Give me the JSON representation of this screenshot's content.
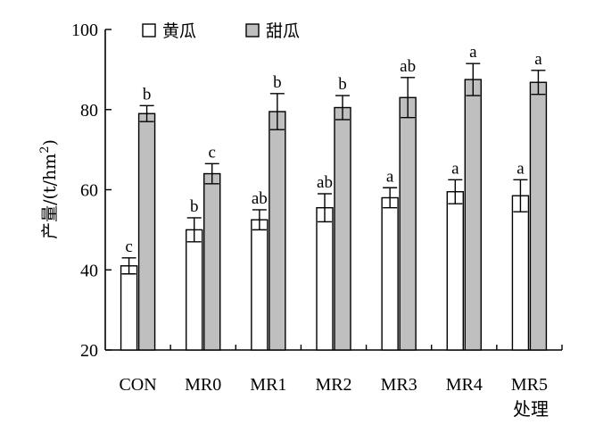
{
  "chart_data": {
    "type": "bar",
    "title": "",
    "xlabel": "处理",
    "ylabel": "产量/(t/hm²)",
    "ylabel_parts": {
      "main": "产量/(t/hm",
      "sup": "2",
      "tail": ")"
    },
    "ylim": [
      20,
      100
    ],
    "yticks": [
      20,
      40,
      60,
      80,
      100
    ],
    "grid": false,
    "legend_position": "top",
    "categories": [
      "CON",
      "MR0",
      "MR1",
      "MR2",
      "MR3",
      "MR4",
      "MR5"
    ],
    "series": [
      {
        "name": "黄瓜",
        "fill": "#ffffff",
        "values": [
          41.0,
          50.0,
          52.5,
          55.5,
          58.0,
          59.5,
          58.5
        ],
        "errors": [
          2.0,
          3.0,
          2.5,
          3.5,
          2.5,
          3.0,
          4.0
        ],
        "labels": [
          "c",
          "b",
          "ab",
          "ab",
          "a",
          "a",
          "a"
        ]
      },
      {
        "name": "甜瓜",
        "fill": "#bfbfbf",
        "values": [
          79.0,
          64.0,
          79.5,
          80.5,
          83.0,
          87.5,
          86.8
        ],
        "errors": [
          2.0,
          2.5,
          4.5,
          3.0,
          5.0,
          4.0,
          3.0
        ],
        "labels": [
          "b",
          "c",
          "b",
          "b",
          "ab",
          "a",
          "a"
        ]
      }
    ]
  }
}
